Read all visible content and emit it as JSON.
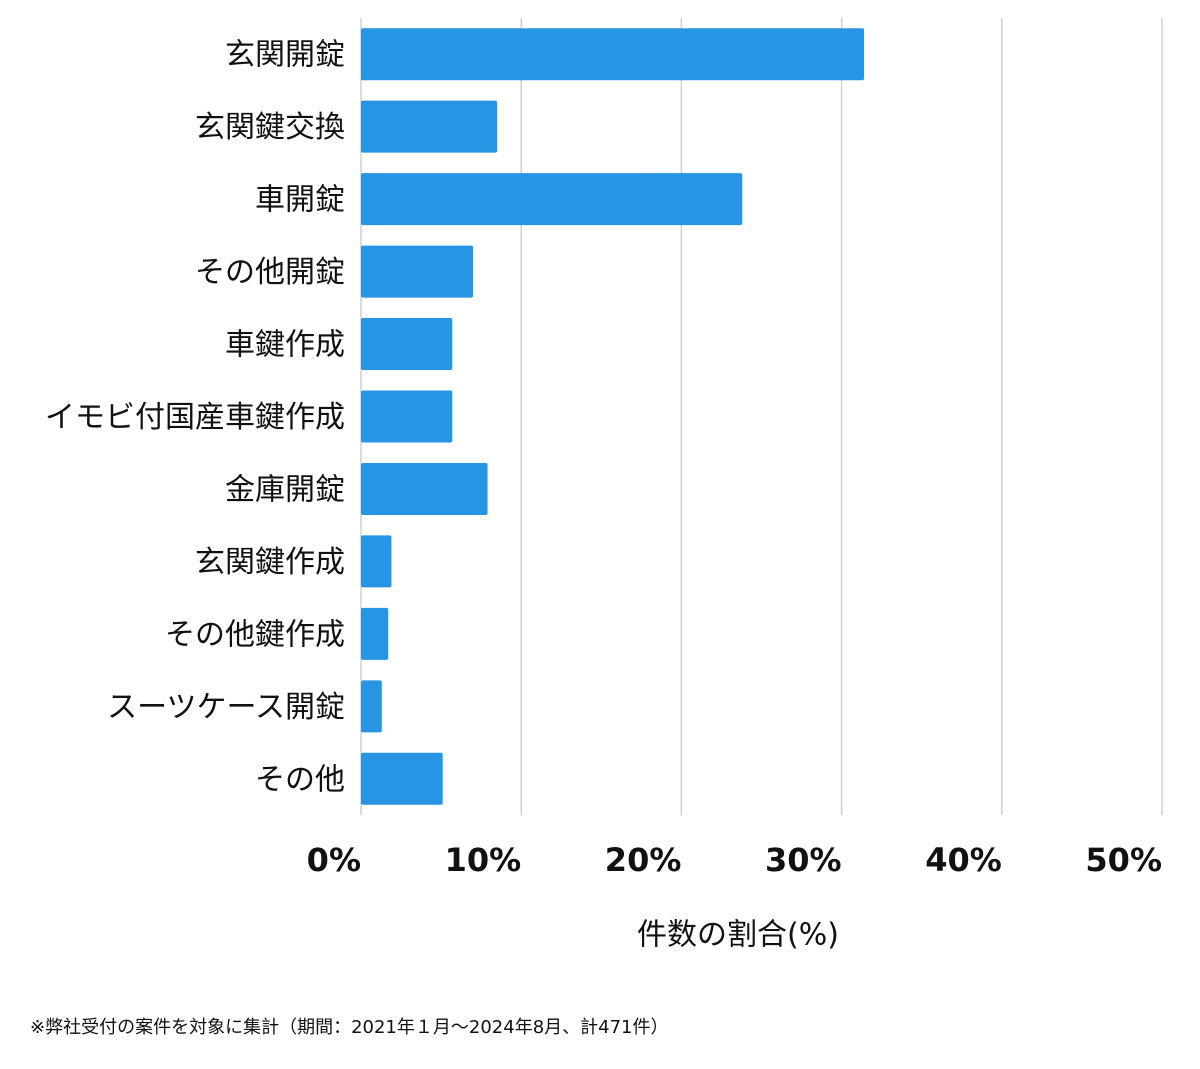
{
  "chart_data": {
    "type": "bar",
    "orientation": "horizontal",
    "categories": [
      "玄関開錠",
      "玄関鍵交換",
      "車開錠",
      "その他開錠",
      "車鍵作成",
      "イモビ付国産車鍵作成",
      "金庫開錠",
      "玄関鍵作成",
      "その他鍵作成",
      "スーツケース開錠",
      "その他"
    ],
    "values": [
      31.4,
      8.5,
      23.8,
      7.0,
      5.7,
      5.7,
      7.9,
      1.9,
      1.7,
      1.3,
      5.1
    ],
    "color": "#2794e4",
    "xlim": [
      0,
      50
    ],
    "xticks": [
      {
        "value": 0,
        "label": "0%"
      },
      {
        "value": 10,
        "label": "10%"
      },
      {
        "value": 20,
        "label": "20%"
      },
      {
        "value": 30,
        "label": "30%"
      },
      {
        "value": 40,
        "label": "40%"
      },
      {
        "value": 50,
        "label": "50%"
      }
    ],
    "grid": true,
    "xlabel": "件数の割合(%)"
  },
  "footnote": "※弊社受付の案件を対象に集計（期間：2021年１月〜2024年8月、計471件）"
}
